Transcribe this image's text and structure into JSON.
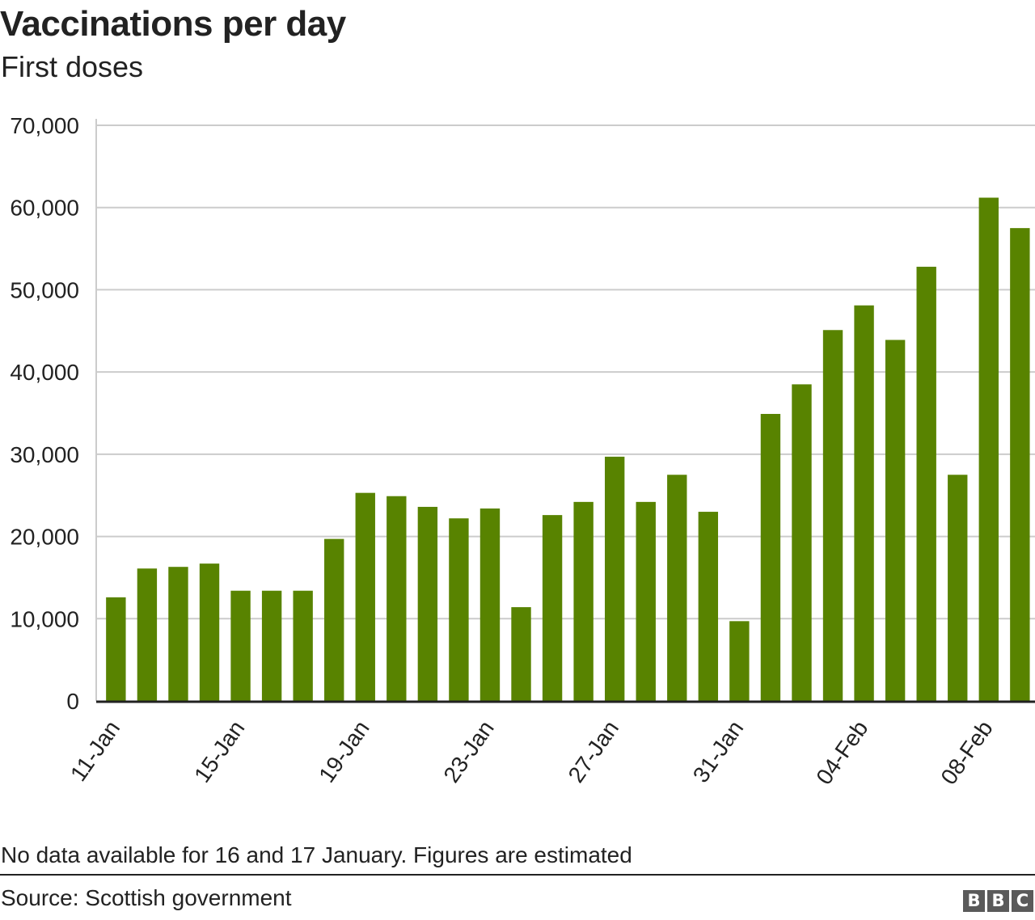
{
  "header": {
    "title": "Vaccinations per day",
    "subtitle": "First doses"
  },
  "footer": {
    "note": "No data available for 16 and 17 January. Figures are estimated",
    "source": "Source: Scottish government",
    "logo_letters": [
      "B",
      "B",
      "C"
    ]
  },
  "colors": {
    "bar": "#588300",
    "grid": "#cccccc",
    "axis": "#222222"
  },
  "chart_data": {
    "type": "bar",
    "title": "Vaccinations per day",
    "subtitle": "First doses",
    "xlabel": "",
    "ylabel": "",
    "ylim": [
      0,
      70000
    ],
    "y_ticks": [
      0,
      10000,
      20000,
      30000,
      40000,
      50000,
      60000,
      70000
    ],
    "y_tick_labels": [
      "0",
      "10,000",
      "20,000",
      "30,000",
      "40,000",
      "50,000",
      "60,000",
      "70,000"
    ],
    "grid": true,
    "legend": "none",
    "categories": [
      "11-Jan",
      "12-Jan",
      "13-Jan",
      "14-Jan",
      "15-Jan",
      "16-Jan",
      "17-Jan",
      "18-Jan",
      "19-Jan",
      "20-Jan",
      "21-Jan",
      "22-Jan",
      "23-Jan",
      "24-Jan",
      "25-Jan",
      "26-Jan",
      "27-Jan",
      "28-Jan",
      "29-Jan",
      "30-Jan",
      "31-Jan",
      "01-Feb",
      "02-Feb",
      "03-Feb",
      "04-Feb",
      "05-Feb",
      "06-Feb",
      "07-Feb",
      "08-Feb",
      "09-Feb"
    ],
    "x_tick_labels": [
      {
        "index": 0,
        "label": "11-Jan"
      },
      {
        "index": 4,
        "label": "15-Jan"
      },
      {
        "index": 8,
        "label": "19-Jan"
      },
      {
        "index": 12,
        "label": "23-Jan"
      },
      {
        "index": 16,
        "label": "27-Jan"
      },
      {
        "index": 20,
        "label": "31-Jan"
      },
      {
        "index": 24,
        "label": "04-Feb"
      },
      {
        "index": 28,
        "label": "08-Feb"
      }
    ],
    "values": [
      12600,
      16100,
      16300,
      16700,
      13400,
      13400,
      13400,
      19700,
      25300,
      24900,
      23600,
      22200,
      23400,
      11400,
      22600,
      24200,
      29700,
      24200,
      27500,
      23000,
      9700,
      34900,
      38500,
      45100,
      48100,
      43900,
      52800,
      27500,
      61200,
      57500
    ]
  }
}
